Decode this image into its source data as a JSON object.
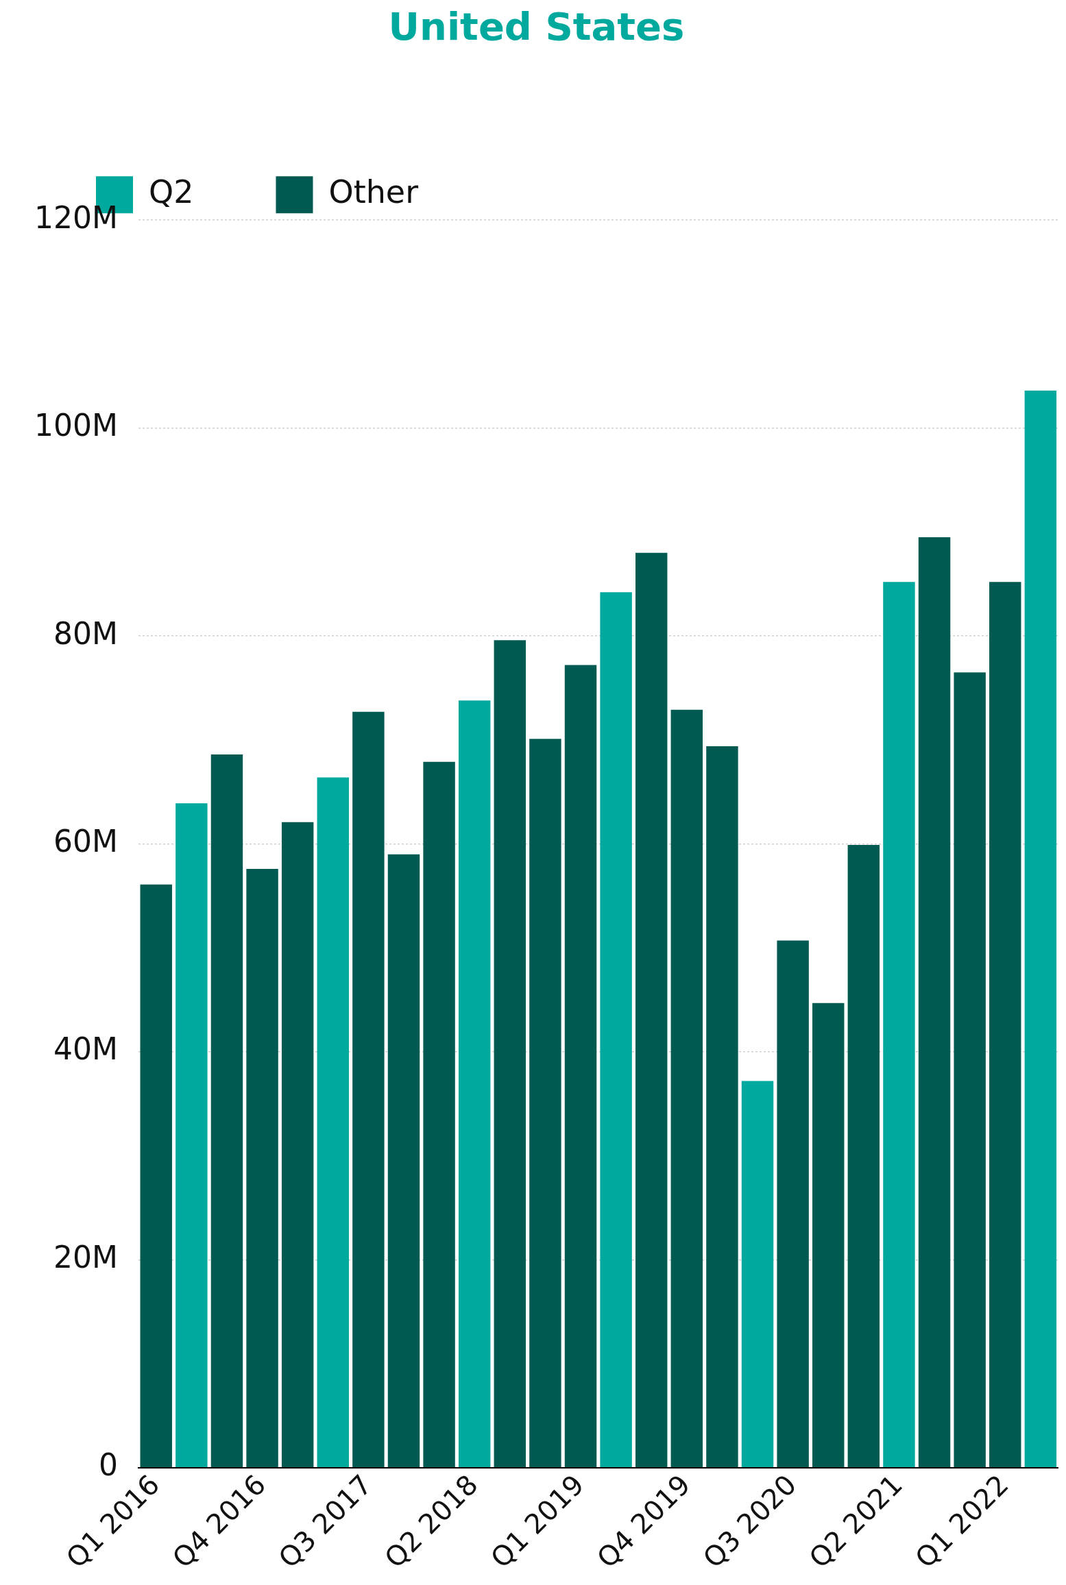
{
  "chart_data": {
    "type": "bar",
    "title": "United States",
    "categories": [
      "Q1 2016",
      null,
      null,
      "Q4 2016",
      null,
      null,
      "Q3 2017",
      null,
      null,
      "Q2 2018",
      null,
      null,
      "Q1 2019",
      null,
      null,
      "Q4 2019",
      null,
      null,
      "Q3 2020",
      null,
      null,
      "Q2 2021",
      null,
      null,
      "Q1 2022",
      null
    ],
    "series": [
      {
        "name": "Q2",
        "color": "#00a99d",
        "values": [
          null,
          63.9,
          null,
          null,
          null,
          66.4,
          null,
          null,
          null,
          73.8,
          null,
          null,
          null,
          84.2,
          null,
          null,
          null,
          37.2,
          null,
          null,
          null,
          85.2,
          null,
          null,
          null,
          103.6
        ]
      },
      {
        "name": "Other",
        "color": "#005a52",
        "values": [
          56.1,
          null,
          68.6,
          57.6,
          62.1,
          null,
          72.7,
          59.0,
          67.9,
          null,
          79.6,
          70.1,
          77.2,
          null,
          88.0,
          72.9,
          69.4,
          null,
          50.7,
          44.7,
          59.9,
          null,
          89.5,
          76.5,
          85.2,
          null
        ]
      }
    ],
    "ylim": [
      0,
      120
    ],
    "yticks": [
      0,
      {
        "value": 20,
        "label": "20M"
      },
      {
        "value": 40,
        "label": "40M"
      },
      {
        "value": 60,
        "label": "60M"
      },
      {
        "value": 80,
        "label": "80M"
      },
      {
        "value": 100,
        "label": "100M"
      },
      {
        "value": 120,
        "label": "120M"
      }
    ],
    "grid": "y",
    "legend": "top left"
  }
}
